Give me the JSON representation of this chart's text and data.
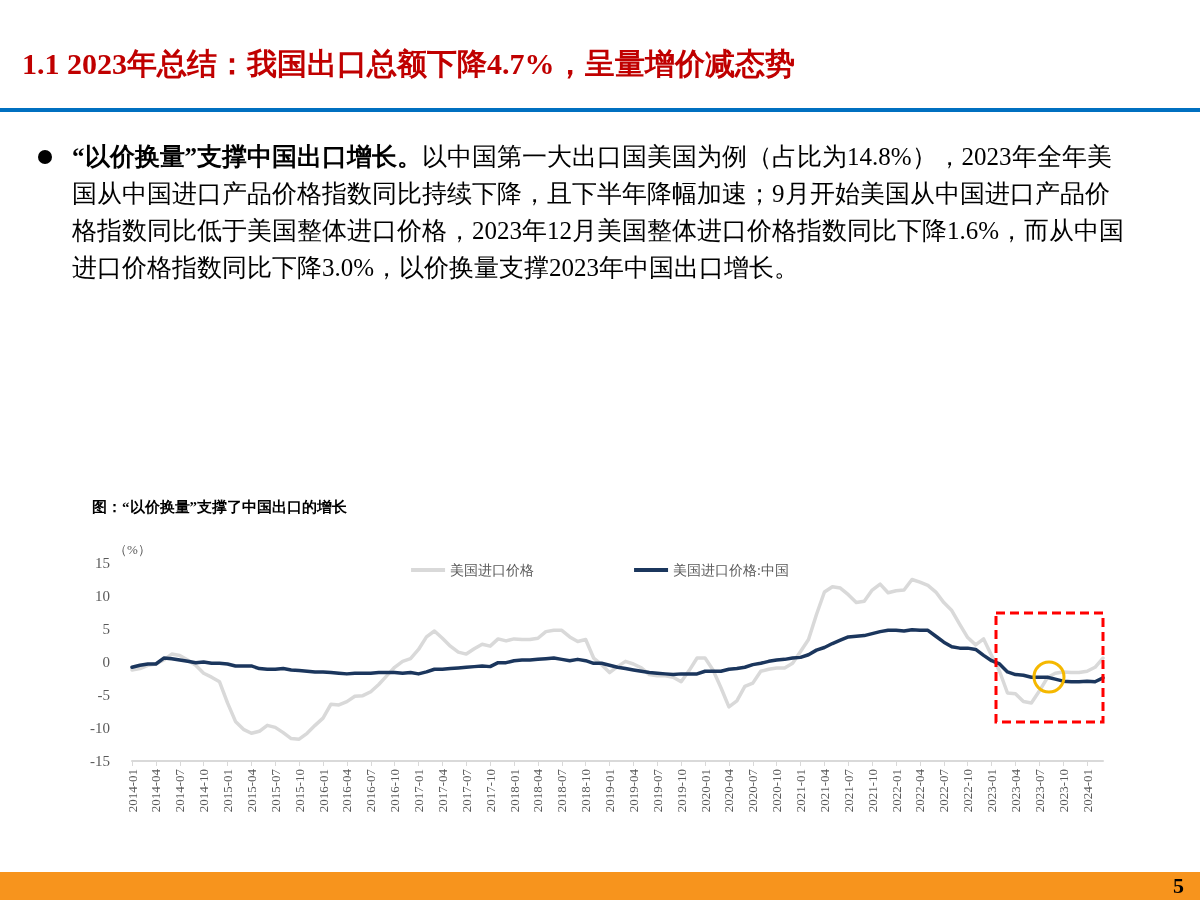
{
  "chart_data": {
    "type": "line",
    "title": "1.1 2023年总结：我国出口总额下降4.7%，呈量增价减态势",
    "subtitle": "图：“以价换量”支撑了中国出口的增长",
    "ylabel": "（%）",
    "annotations": [
      "“以价换量”支撑中国出口增长。",
      "以中国第一大出口国美国为例（占比为14.8%），2023年全年美国从中国进口产品价格指数同比持续下降，且下半年降幅加速；9月开始美国从中国进口产品价格指数同比低于美国整体进口价格，2023年12月美国整体进口价格指数同比下降1.6%，而从中国进口价格指数同比下降3.0%，以价换量支撑2023年中国出口增长。",
      "5"
    ],
    "categories": [
      "2014-01",
      null,
      null,
      "2014-04",
      null,
      null,
      "2014-07",
      null,
      null,
      "2014-10",
      null,
      null,
      "2015-01",
      null,
      null,
      "2015-04",
      null,
      null,
      "2015-07",
      null,
      null,
      "2015-10",
      null,
      null,
      "2016-01",
      null,
      null,
      "2016-04",
      null,
      null,
      "2016-07",
      null,
      null,
      "2016-10",
      null,
      null,
      "2017-01",
      null,
      null,
      "2017-04",
      null,
      null,
      "2017-07",
      null,
      null,
      "2017-10",
      null,
      null,
      "2018-01",
      null,
      null,
      "2018-04",
      null,
      null,
      "2018-07",
      null,
      null,
      "2018-10",
      null,
      null,
      "2019-01",
      null,
      null,
      "2019-04",
      null,
      null,
      "2019-07",
      null,
      null,
      "2019-10",
      null,
      null,
      "2020-01",
      null,
      null,
      "2020-04",
      null,
      null,
      "2020-07",
      null,
      null,
      "2020-10",
      null,
      null,
      "2021-01",
      null,
      null,
      "2021-04",
      null,
      null,
      "2021-07",
      null,
      null,
      "2021-10",
      null,
      null,
      "2022-01",
      null,
      null,
      "2022-04",
      null,
      null,
      "2022-07",
      null,
      null,
      "2022-10",
      null,
      null,
      "2023-01",
      null,
      null,
      "2023-04",
      null,
      null,
      "2023-07",
      null,
      null,
      "2023-10",
      null,
      null,
      "2024-01",
      null,
      null
    ],
    "series": [
      {
        "name": "美国进口价格",
        "color": "#d9d9d9",
        "values": [
          -1.2,
          -1.0,
          -0.5,
          -0.3,
          0.3,
          1.2,
          1.0,
          0.3,
          -0.5,
          -1.7,
          -2.3,
          -3.0,
          -6.2,
          -9.0,
          -10.2,
          -10.8,
          -10.5,
          -9.6,
          -9.9,
          -10.7,
          -11.6,
          -11.7,
          -10.8,
          -9.6,
          -8.5,
          -6.4,
          -6.5,
          -6.0,
          -5.2,
          -5.1,
          -4.5,
          -3.4,
          -2.1,
          -0.8,
          0.1,
          0.5,
          1.9,
          3.8,
          4.7,
          3.6,
          2.4,
          1.5,
          1.2,
          2.0,
          2.7,
          2.4,
          3.5,
          3.2,
          3.5,
          3.4,
          3.4,
          3.6,
          4.6,
          4.8,
          4.8,
          3.8,
          3.1,
          3.4,
          0.6,
          -0.4,
          -1.6,
          -0.7,
          0.1,
          -0.3,
          -0.9,
          -1.9,
          -2.1,
          -2.1,
          -2.3,
          -3.0,
          -1.3,
          0.6,
          0.6,
          -1.2,
          -3.9,
          -6.8,
          -5.9,
          -3.7,
          -3.2,
          -1.4,
          -1.1,
          -0.9,
          -0.9,
          -0.2,
          1.6,
          3.4,
          7.2,
          10.6,
          11.4,
          11.2,
          10.2,
          9.0,
          9.2,
          10.9,
          11.8,
          10.5,
          10.8,
          10.9,
          12.5,
          12.1,
          11.6,
          10.6,
          9.0,
          7.8,
          5.7,
          3.7,
          2.6,
          3.5,
          1.0,
          -1.4,
          -4.7,
          -4.8,
          -6.0,
          -6.2,
          -4.4,
          -2.4,
          -1.7,
          -1.5,
          -1.6,
          -1.6,
          -1.4,
          -0.8,
          0.6
        ]
      },
      {
        "name": "美国进口价格:中国",
        "color": "#1b365d",
        "values": [
          -0.8,
          -0.5,
          -0.3,
          -0.3,
          0.6,
          0.5,
          0.3,
          0.1,
          -0.1,
          0,
          -0.2,
          -0.2,
          -0.3,
          -0.6,
          -0.6,
          -0.6,
          -1.0,
          -1.1,
          -1.1,
          -1.0,
          -1.2,
          -1.3,
          -1.4,
          -1.5,
          -1.5,
          -1.6,
          -1.7,
          -1.8,
          -1.7,
          -1.7,
          -1.7,
          -1.6,
          -1.6,
          -1.6,
          -1.7,
          -1.6,
          -1.8,
          -1.5,
          -1.1,
          -1.1,
          -1.0,
          -0.9,
          -0.8,
          -0.7,
          -0.6,
          -0.7,
          -0.1,
          -0.1,
          0.2,
          0.3,
          0.3,
          0.4,
          0.5,
          0.6,
          0.4,
          0.2,
          0.4,
          0.2,
          -0.2,
          -0.2,
          -0.5,
          -0.8,
          -1.0,
          -1.2,
          -1.4,
          -1.6,
          -1.7,
          -1.8,
          -1.9,
          -1.8,
          -1.8,
          -1.8,
          -1.4,
          -1.4,
          -1.4,
          -1.1,
          -1.0,
          -0.8,
          -0.4,
          -0.2,
          0.1,
          0.3,
          0.4,
          0.6,
          0.7,
          1.1,
          1.8,
          2.2,
          2.8,
          3.3,
          3.8,
          3.9,
          4.0,
          4.3,
          4.6,
          4.8,
          4.8,
          4.7,
          4.9,
          4.8,
          4.8,
          3.9,
          3.0,
          2.3,
          2.1,
          2.1,
          1.9,
          1.0,
          0.2,
          -0.3,
          -1.5,
          -1.9,
          -2.0,
          -2.3,
          -2.3,
          -2.3,
          -2.6,
          -2.9,
          -3.0,
          -3.0,
          -2.9,
          -3.0,
          -2.4
        ]
      }
    ],
    "ylim": [
      -15,
      15
    ],
    "yticks": [
      -15,
      -10,
      -5,
      0,
      5,
      10,
      15
    ],
    "grid": false,
    "legend": "top",
    "marker": "none",
    "line_style": "solid"
  }
}
